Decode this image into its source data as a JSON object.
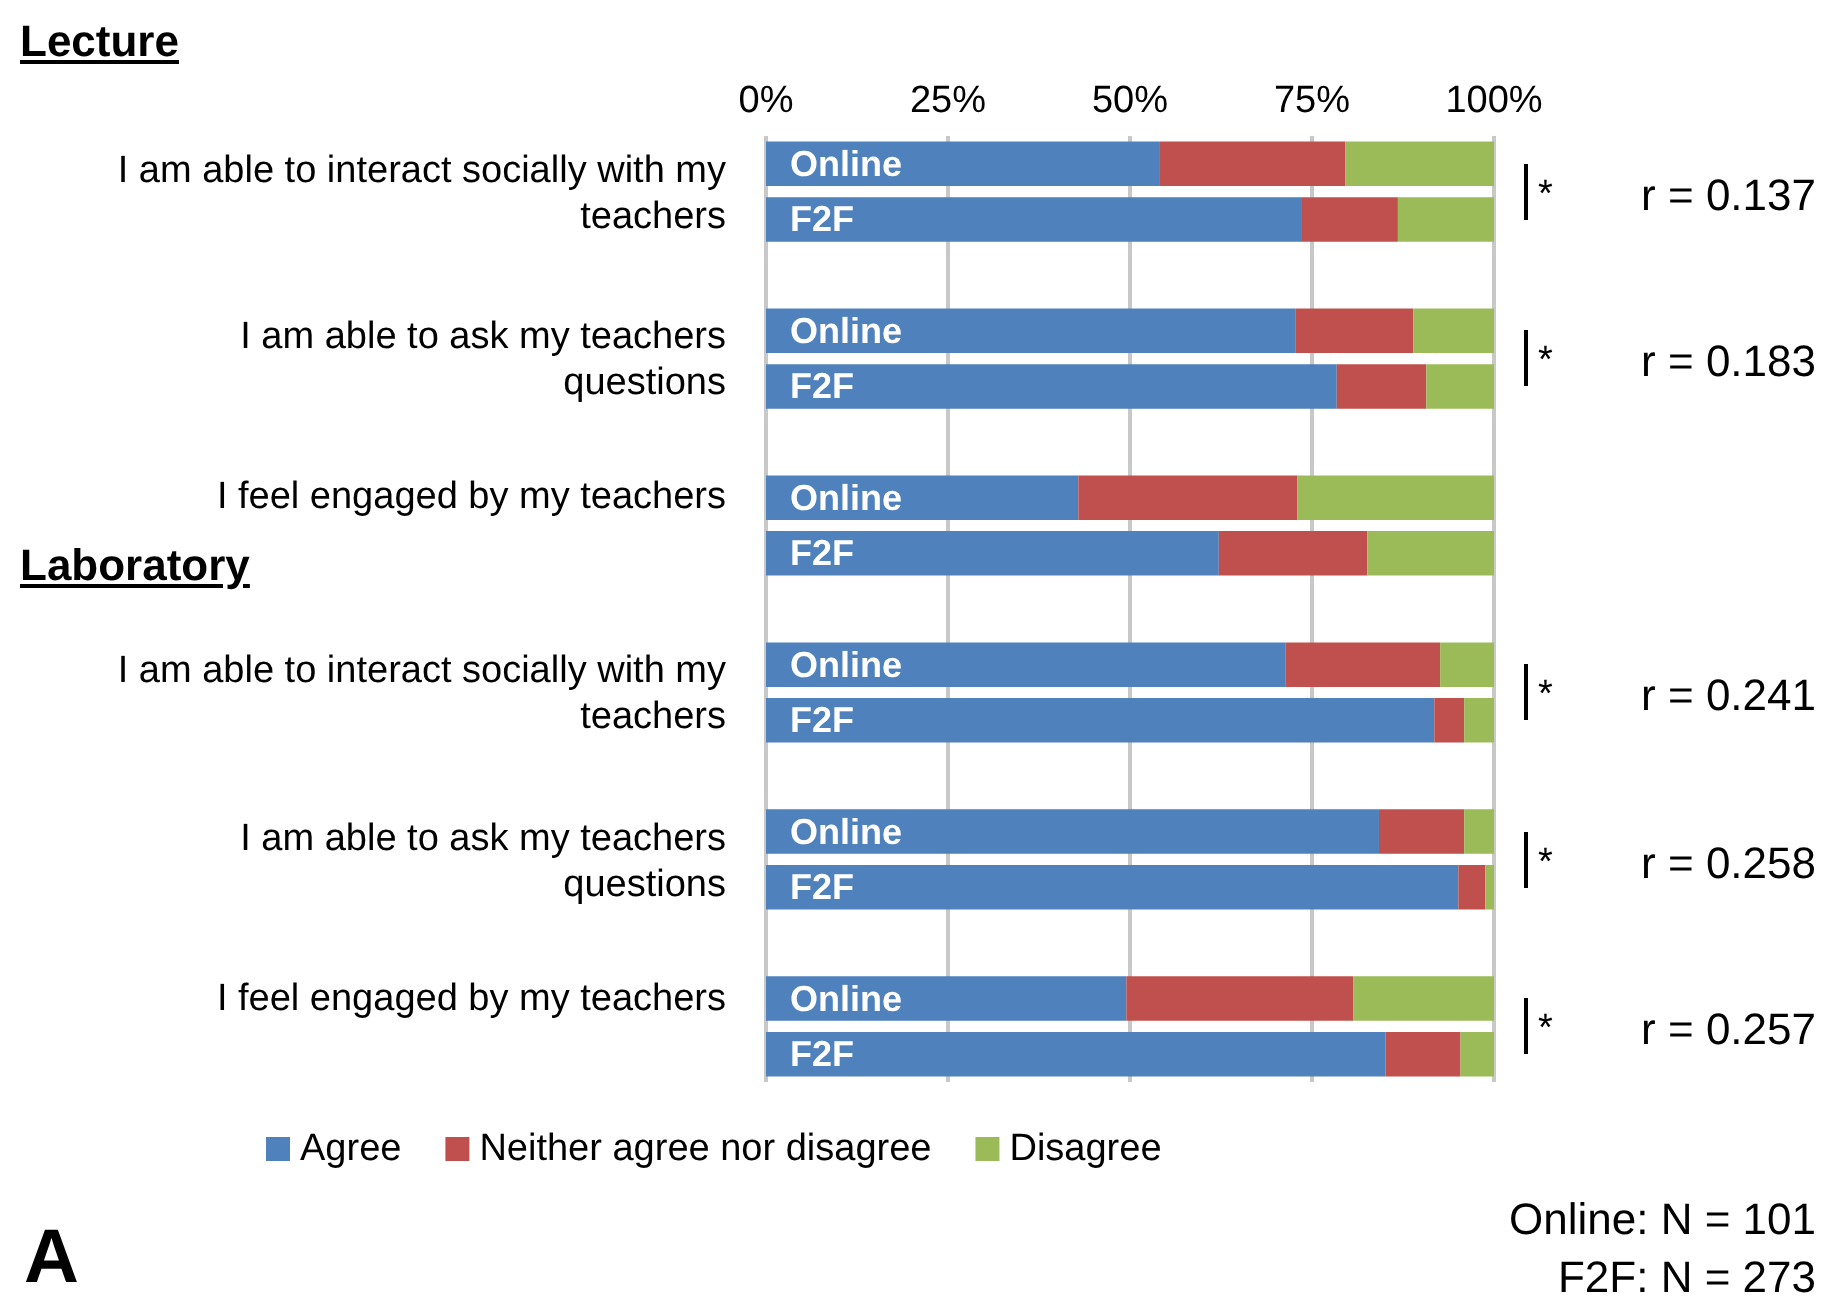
{
  "chart_data": {
    "type": "bar",
    "orientation": "horizontal",
    "stacked": true,
    "categories": [
      "Online",
      "F2F",
      null,
      "Online",
      "F2F",
      null,
      "Online",
      "F2F",
      null,
      "Online",
      "F2F",
      null,
      "Online",
      "F2F",
      null,
      "Online",
      "F2F"
    ],
    "series": [
      {
        "name": "Agree",
        "color": "#4f81bd",
        "values": [
          54,
          73.5,
          null,
          72.7,
          78.4,
          null,
          42.9,
          62.2,
          null,
          71.4,
          91.8,
          null,
          84.2,
          95.1,
          null,
          49.5,
          85.1
        ]
      },
      {
        "name": "Neither agree nor disagree",
        "color": "#c0504d",
        "values": [
          25.6,
          13.3,
          null,
          16.2,
          12.3,
          null,
          30.1,
          20.4,
          null,
          21.2,
          4.1,
          null,
          11.7,
          3.7,
          null,
          31.2,
          10.3
        ]
      },
      {
        "name": "Disagree",
        "color": "#9bbb59",
        "values": [
          20.4,
          13.2,
          null,
          11.1,
          9.3,
          null,
          27,
          17.4,
          null,
          7.4,
          4.1,
          null,
          4.1,
          1.2,
          null,
          19.3,
          4.6
        ]
      }
    ],
    "xlim": [
      0,
      100
    ],
    "xticks": [
      {
        "value": 0,
        "label": "0%"
      },
      {
        "value": 25,
        "label": "25%"
      },
      {
        "value": 50,
        "label": "50%"
      },
      {
        "value": 75,
        "label": "75%"
      },
      {
        "value": 100,
        "label": "100%"
      }
    ],
    "grid": "x",
    "legend": "bottom",
    "annotations": [
      "Lecture",
      "I am able to interact socially with my teachers",
      "I am able to ask my teachers questions",
      "I feel engaged by my teachers",
      "Laboratory",
      "I am able to interact socially with my teachers",
      "I am able to ask my teachers questions",
      "I feel engaged by my teachers",
      "*",
      "r = 0.137",
      "*",
      "r = 0.183",
      "*",
      "r = 0.241",
      "*",
      "r = 0.258",
      "*",
      "r = 0.257",
      "Online: N = 101",
      "F2F: N = 273",
      "A"
    ]
  }
}
